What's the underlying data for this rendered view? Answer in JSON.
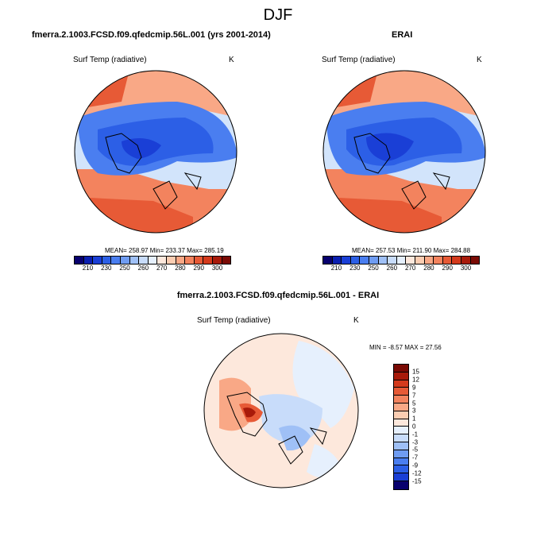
{
  "main_title": "DJF",
  "panels": [
    {
      "title": "fmerra.2.1003.FCSD.f09.qfedcmip.56L.001 (yrs 2001-2014)",
      "variable": "Surf Temp (radiative)",
      "units": "K",
      "stats": "MEAN= 258.97  Min= 233.37  Max= 285.19"
    },
    {
      "title": "ERAI",
      "variable": "Surf Temp (radiative)",
      "units": "K",
      "stats": "MEAN= 257.53  Min= 211.90  Max= 284.88"
    },
    {
      "title": "fmerra.2.1003.FCSD.f09.qfedcmip.56L.001 - ERAI",
      "variable": "Surf Temp (radiative)",
      "units": "K",
      "stats": "MIN =  -8.57 MAX =  27.56"
    }
  ],
  "colorbar_abs": {
    "labels": [
      "210",
      "230",
      "250",
      "260",
      "270",
      "280",
      "290",
      "300"
    ],
    "colors": [
      "#08006e",
      "#0a1fb0",
      "#1a3fd6",
      "#2c5fe6",
      "#4a7ef0",
      "#6f9cf2",
      "#9fc0f6",
      "#c8dcfa",
      "#e6f0fd",
      "#fde8dc",
      "#fbcdb2",
      "#f9a886",
      "#f3835e",
      "#e75a36",
      "#d43a1c",
      "#a81a0a",
      "#7a0a04"
    ]
  },
  "colorbar_diff": {
    "labels": [
      "15",
      "12",
      "9",
      "7",
      "5",
      "3",
      "1",
      "0",
      "-1",
      "-3",
      "-5",
      "-7",
      "-9",
      "-12",
      "-15"
    ],
    "colors": [
      "#7a0a04",
      "#a81a0a",
      "#d43a1c",
      "#e75a36",
      "#f3835e",
      "#f9a886",
      "#fbcdb2",
      "#fde8dc",
      "#e6f0fd",
      "#c8dcfa",
      "#9fc0f6",
      "#6f9cf2",
      "#4a7ef0",
      "#2c5fe6",
      "#1a3fd6",
      "#08006e"
    ]
  },
  "chart_data": [
    {
      "type": "heatmap",
      "projection": "north-polar-stereographic",
      "title": "fmerra.2.1003.FCSD.f09.qfedcmip.56L.001 (yrs 2001-2014)",
      "variable": "Surf Temp (radiative)",
      "units": "K",
      "mean": 258.97,
      "min": 233.37,
      "max": 285.19,
      "levels": [
        210,
        230,
        250,
        260,
        270,
        280,
        290,
        300
      ]
    },
    {
      "type": "heatmap",
      "projection": "north-polar-stereographic",
      "title": "ERAI",
      "variable": "Surf Temp (radiative)",
      "units": "K",
      "mean": 257.53,
      "min": 211.9,
      "max": 284.88,
      "levels": [
        210,
        230,
        250,
        260,
        270,
        280,
        290,
        300
      ]
    },
    {
      "type": "heatmap",
      "projection": "north-polar-stereographic",
      "title": "fmerra.2.1003.FCSD.f09.qfedcmip.56L.001 - ERAI",
      "variable": "Surf Temp (radiative)",
      "units": "K",
      "min": -8.57,
      "max": 27.56,
      "levels": [
        -15,
        -12,
        -9,
        -7,
        -5,
        -3,
        -1,
        0,
        1,
        3,
        5,
        7,
        9,
        12,
        15
      ]
    }
  ]
}
